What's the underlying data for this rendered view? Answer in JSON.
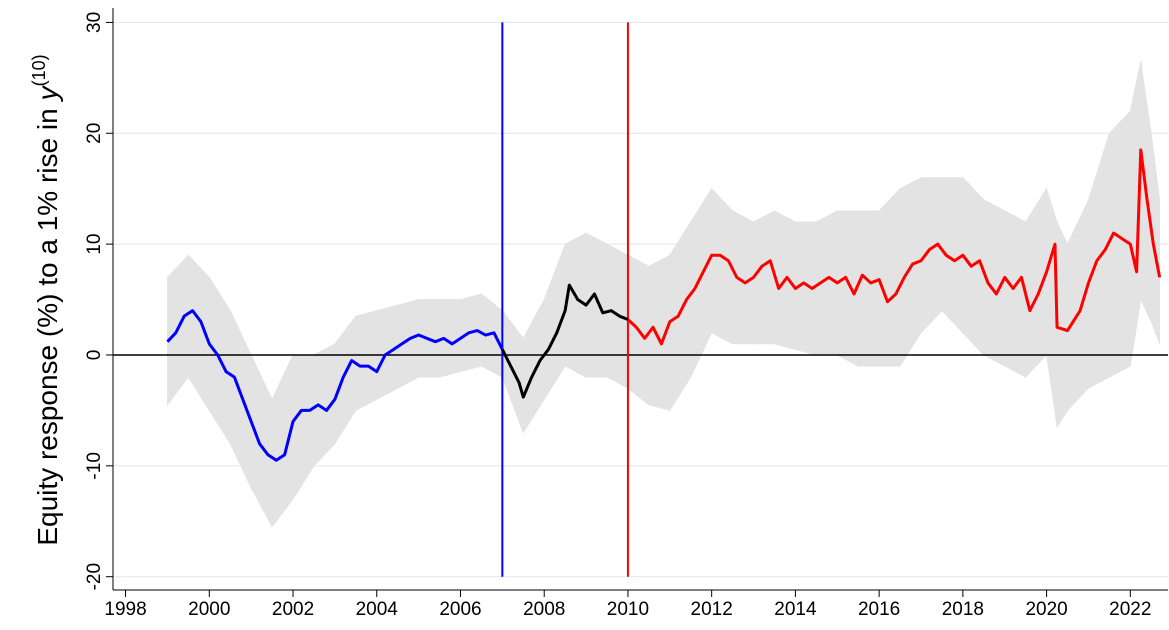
{
  "chart_data": {
    "type": "line",
    "ylabel": "Equity response (%) to a 1% rise in",
    "ylabel_var": "y",
    "ylabel_sup": "(10)",
    "xlim": [
      1997.7,
      2022.9
    ],
    "ylim": [
      -21.2,
      31.3
    ],
    "xticks": [
      1998,
      2000,
      2002,
      2004,
      2006,
      2008,
      2010,
      2012,
      2014,
      2016,
      2018,
      2020,
      2022
    ],
    "yticks": [
      -20,
      -10,
      0,
      10,
      20,
      30
    ],
    "grid": true,
    "grid_color": "#dfe8ee",
    "hline": 0,
    "vlines": [
      {
        "x": 2007,
        "color": "#0000ff"
      },
      {
        "x": 2010,
        "color": "#ff0000"
      }
    ],
    "band": {
      "color": "#e3e3e3",
      "x": [
        1999.0,
        1999.5,
        2000.0,
        2000.5,
        2001.0,
        2001.5,
        2002.0,
        2002.5,
        2003.0,
        2003.5,
        2004.0,
        2004.5,
        2005.0,
        2005.5,
        2006.0,
        2006.5,
        2007.0,
        2007.5,
        2008.0,
        2008.5,
        2009.0,
        2009.5,
        2010.0,
        2010.5,
        2011.0,
        2011.5,
        2012.0,
        2012.5,
        2013.0,
        2013.5,
        2014.0,
        2014.5,
        2015.0,
        2015.5,
        2016.0,
        2016.5,
        2017.0,
        2017.5,
        2018.0,
        2018.5,
        2019.0,
        2019.5,
        2020.0,
        2020.25,
        2020.5,
        2021.0,
        2021.5,
        2022.0,
        2022.25,
        2022.5,
        2022.7
      ],
      "lower": [
        -4.5,
        -2,
        -5,
        -8,
        -12,
        -15.5,
        -13,
        -10,
        -8,
        -5,
        -4,
        -3,
        -2,
        -2,
        -1.5,
        -1,
        -2,
        -7,
        -4,
        -1,
        -2,
        -2,
        -3,
        -4.5,
        -5,
        -2,
        2,
        1,
        1,
        1,
        0.5,
        0,
        0,
        -1,
        -1,
        -1,
        2,
        4,
        2,
        0,
        -1,
        -2,
        0,
        -6.5,
        -5,
        -3,
        -2,
        -1,
        5,
        3,
        1
      ],
      "upper": [
        7,
        9,
        7,
        4,
        0,
        -4,
        0,
        0,
        1,
        3.5,
        4,
        4.5,
        5,
        5,
        5,
        5.5,
        4,
        1.5,
        5,
        10,
        11,
        10,
        9,
        8,
        9,
        12,
        15,
        13,
        12,
        13,
        12,
        12,
        13,
        13,
        13,
        15,
        16,
        16,
        16,
        14,
        13,
        12,
        15,
        12,
        10,
        14,
        20,
        22,
        26.5,
        20,
        14
      ]
    },
    "series": [
      {
        "color": "#0000ff",
        "x": [
          1999.0,
          1999.2,
          1999.4,
          1999.6,
          1999.8,
          2000.0,
          2000.2,
          2000.4,
          2000.6,
          2000.8,
          2001.0,
          2001.2,
          2001.4,
          2001.6,
          2001.8,
          2002.0,
          2002.2,
          2002.4,
          2002.6,
          2002.8,
          2003.0,
          2003.2,
          2003.4,
          2003.6,
          2003.8,
          2004.0,
          2004.2,
          2004.4,
          2004.6,
          2004.8,
          2005.0,
          2005.2,
          2005.4,
          2005.6,
          2005.8,
          2006.0,
          2006.2,
          2006.4,
          2006.6,
          2006.8,
          2007.0
        ],
        "y": [
          1.2,
          2,
          3.5,
          4,
          3,
          1,
          0,
          -1.5,
          -2,
          -4,
          -6,
          -8,
          -9,
          -9.5,
          -9,
          -6,
          -5,
          -5,
          -4.5,
          -5,
          -4,
          -2,
          -0.5,
          -1,
          -1,
          -1.5,
          0,
          0.5,
          1,
          1.5,
          1.8,
          1.5,
          1.2,
          1.5,
          1,
          1.5,
          2,
          2.2,
          1.8,
          2,
          0.5
        ]
      },
      {
        "color": "#000000",
        "x": [
          2007.0,
          2007.2,
          2007.4,
          2007.5,
          2007.7,
          2007.9,
          2008.1,
          2008.3,
          2008.5,
          2008.6,
          2008.8,
          2009.0,
          2009.2,
          2009.4,
          2009.6,
          2009.8,
          2010.0
        ],
        "y": [
          0.5,
          -1,
          -2.5,
          -3.8,
          -2,
          -0.5,
          0.5,
          2,
          4,
          6.3,
          5,
          4.5,
          5.5,
          3.8,
          4,
          3.5,
          3.2
        ]
      },
      {
        "color": "#ff0000",
        "x": [
          2010.0,
          2010.2,
          2010.4,
          2010.6,
          2010.8,
          2011.0,
          2011.2,
          2011.4,
          2011.6,
          2011.8,
          2012.0,
          2012.2,
          2012.4,
          2012.6,
          2012.8,
          2013.0,
          2013.2,
          2013.4,
          2013.6,
          2013.8,
          2014.0,
          2014.2,
          2014.4,
          2014.6,
          2014.8,
          2015.0,
          2015.2,
          2015.4,
          2015.6,
          2015.8,
          2016.0,
          2016.2,
          2016.4,
          2016.6,
          2016.8,
          2017.0,
          2017.2,
          2017.4,
          2017.6,
          2017.8,
          2018.0,
          2018.2,
          2018.4,
          2018.6,
          2018.8,
          2019.0,
          2019.2,
          2019.4,
          2019.6,
          2019.8,
          2020.0,
          2020.2,
          2020.25,
          2020.5,
          2020.8,
          2021.0,
          2021.2,
          2021.4,
          2021.6,
          2021.8,
          2022.0,
          2022.15,
          2022.25,
          2022.4,
          2022.55,
          2022.7
        ],
        "y": [
          3.2,
          2.5,
          1.5,
          2.5,
          1,
          3,
          3.5,
          5,
          6,
          7.5,
          9,
          9,
          8.5,
          7,
          6.5,
          7,
          8,
          8.5,
          6,
          7,
          6,
          6.5,
          6,
          6.5,
          7,
          6.5,
          7,
          5.5,
          7.2,
          6.5,
          6.8,
          4.8,
          5.5,
          7,
          8.2,
          8.5,
          9.5,
          10,
          9,
          8.5,
          9,
          8,
          8.5,
          6.5,
          5.5,
          7,
          6,
          7,
          4,
          5.5,
          7.5,
          10,
          2.5,
          2.2,
          4,
          6.5,
          8.5,
          9.5,
          11,
          10.5,
          10,
          7.5,
          18.5,
          14,
          10,
          7
        ]
      }
    ]
  }
}
